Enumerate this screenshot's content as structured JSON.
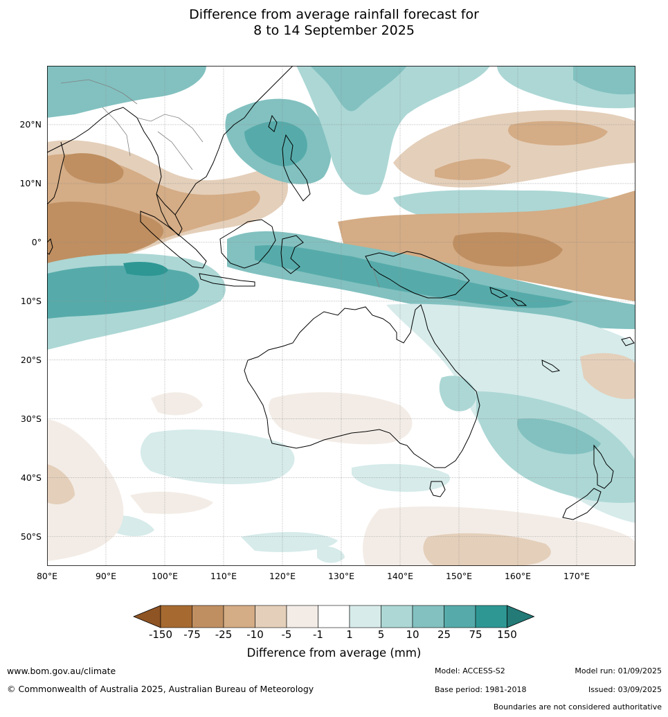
{
  "title_line1": "Difference from average rainfall forecast for",
  "title_line2": "8 to 14 September 2025",
  "map": {
    "lat_labels": [
      "20°N",
      "10°N",
      "0°",
      "10°S",
      "20°S",
      "30°S",
      "40°S",
      "50°S"
    ],
    "lat_values": [
      20,
      10,
      0,
      -10,
      -20,
      -30,
      -40,
      -50
    ],
    "lon_labels": [
      "80°E",
      "90°E",
      "100°E",
      "110°E",
      "120°E",
      "130°E",
      "140°E",
      "150°E",
      "160°E",
      "170°E"
    ],
    "lon_values": [
      80,
      90,
      100,
      110,
      120,
      130,
      140,
      150,
      160,
      170
    ],
    "lon_range": [
      80,
      180
    ],
    "lat_range": [
      -55,
      30
    ]
  },
  "colorbar": {
    "ticks": [
      "-150",
      "-75",
      "-25",
      "-10",
      "-5",
      "-1",
      "1",
      "5",
      "10",
      "25",
      "75",
      "150"
    ],
    "colors": [
      "#a66a30",
      "#bf8f61",
      "#d4ac85",
      "#e4cfba",
      "#f3ece6",
      "#ffffff",
      "#d6ebea",
      "#acd7d5",
      "#82c1c0",
      "#56abaa",
      "#2e9794"
    ],
    "under_color": "#8f5424",
    "over_color": "#237a77",
    "label": "Difference from average (mm)"
  },
  "footer": {
    "website": "www.bom.gov.au/climate",
    "copyright": "© Commonwealth of Australia 2025, Australian Bureau of Meteorology",
    "model": "Model: ACCESS-S2",
    "base_period": "Base period: 1981-2018",
    "model_run": "Model run: 01/09/2025",
    "issued": "Issued: 03/09/2025",
    "disclaimer": "Boundaries are not considered authoritative"
  }
}
